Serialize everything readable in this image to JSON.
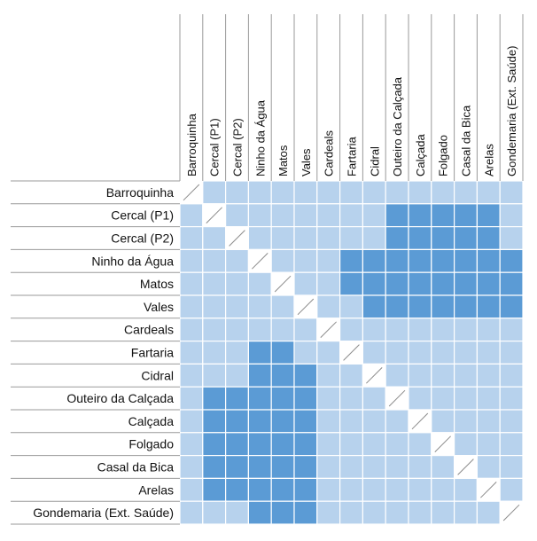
{
  "chart_data": {
    "type": "heatmap",
    "labels": [
      "Barroquinha",
      "Cercal (P1)",
      "Cercal (P2)",
      "Ninho da Água",
      "Matos",
      "Vales",
      "Cardeals",
      "Fartaria",
      "Cidral",
      "Outeiro da Calçada",
      "Calçada",
      "Folgado",
      "Casal da Bica",
      "Arelas",
      "Gondemaria (Ext. Saúde)"
    ],
    "diagonal": "n/a",
    "cell_levels": {
      "1": "light",
      "2": "dark"
    },
    "matrix": [
      [
        0,
        1,
        1,
        1,
        1,
        1,
        1,
        1,
        1,
        1,
        1,
        1,
        1,
        1,
        1
      ],
      [
        1,
        0,
        1,
        1,
        1,
        1,
        1,
        1,
        1,
        2,
        2,
        2,
        2,
        2,
        1
      ],
      [
        1,
        1,
        0,
        1,
        1,
        1,
        1,
        1,
        1,
        2,
        2,
        2,
        2,
        2,
        1
      ],
      [
        1,
        1,
        1,
        0,
        1,
        1,
        1,
        2,
        2,
        2,
        2,
        2,
        2,
        2,
        2
      ],
      [
        1,
        1,
        1,
        1,
        0,
        1,
        1,
        2,
        2,
        2,
        2,
        2,
        2,
        2,
        2
      ],
      [
        1,
        1,
        1,
        1,
        1,
        0,
        1,
        1,
        2,
        2,
        2,
        2,
        2,
        2,
        2
      ],
      [
        1,
        1,
        1,
        1,
        1,
        1,
        0,
        1,
        1,
        1,
        1,
        1,
        1,
        1,
        1
      ],
      [
        1,
        1,
        1,
        2,
        2,
        1,
        1,
        0,
        1,
        1,
        1,
        1,
        1,
        1,
        1
      ],
      [
        1,
        1,
        1,
        2,
        2,
        2,
        1,
        1,
        0,
        1,
        1,
        1,
        1,
        1,
        1
      ],
      [
        1,
        2,
        2,
        2,
        2,
        2,
        1,
        1,
        1,
        0,
        1,
        1,
        1,
        1,
        1
      ],
      [
        1,
        2,
        2,
        2,
        2,
        2,
        1,
        1,
        1,
        1,
        0,
        1,
        1,
        1,
        1
      ],
      [
        1,
        2,
        2,
        2,
        2,
        2,
        1,
        1,
        1,
        1,
        1,
        0,
        1,
        1,
        1
      ],
      [
        1,
        2,
        2,
        2,
        2,
        2,
        1,
        1,
        1,
        1,
        1,
        1,
        0,
        1,
        1
      ],
      [
        1,
        2,
        2,
        2,
        2,
        2,
        1,
        1,
        1,
        1,
        1,
        1,
        1,
        0,
        1
      ],
      [
        1,
        1,
        1,
        2,
        2,
        2,
        1,
        1,
        1,
        1,
        1,
        1,
        1,
        1,
        0
      ]
    ],
    "colors": {
      "light": "#b7d2ed",
      "dark": "#5b9bd5",
      "diagonal_bg": "#ffffff",
      "grid": "#ffffff",
      "label_lines": "#9a9a9a"
    }
  }
}
